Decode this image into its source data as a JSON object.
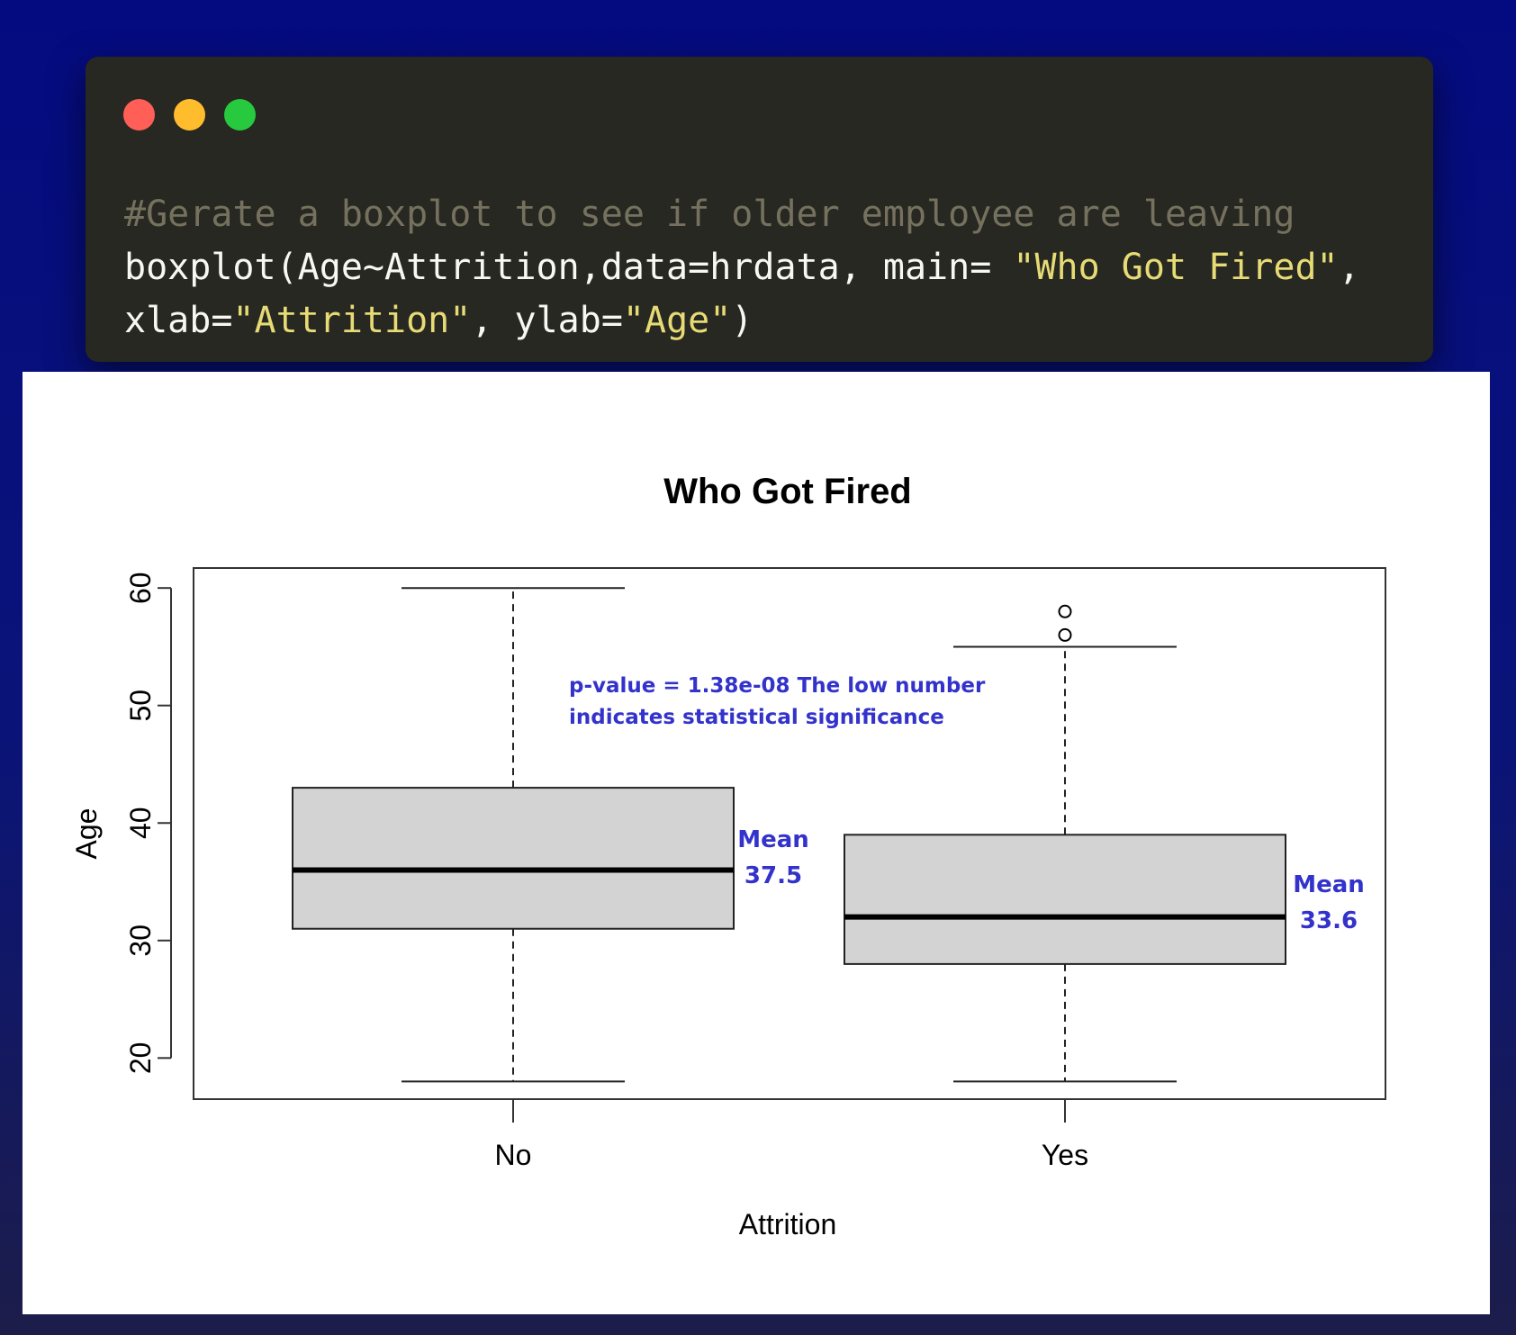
{
  "window": {
    "dots": [
      {
        "name": "close-dot",
        "color": "#ff5f56"
      },
      {
        "name": "minimize-dot",
        "color": "#ffbd2e"
      },
      {
        "name": "maximize-dot",
        "color": "#27c93f"
      }
    ]
  },
  "code": {
    "lines": [
      [
        {
          "t": "#Gerate a boxplot to see if older employee are leaving",
          "k": "comment"
        }
      ],
      [
        {
          "t": "boxplot(Age~Attrition,data=hrdata, main= ",
          "k": "plain"
        },
        {
          "t": "\"Who Got Fired\"",
          "k": "str"
        },
        {
          "t": ",",
          "k": "plain"
        }
      ],
      [
        {
          "t": "xlab=",
          "k": "plain"
        },
        {
          "t": "\"Attrition\"",
          "k": "str"
        },
        {
          "t": ", ylab=",
          "k": "plain"
        },
        {
          "t": "\"Age\"",
          "k": "str"
        },
        {
          "t": ")",
          "k": "plain"
        }
      ]
    ]
  },
  "chart_data": {
    "type": "boxplot",
    "title": "Who Got Fired",
    "xlabel": "Attrition",
    "ylabel": "Age",
    "ylim": [
      16.5,
      61.7
    ],
    "yticks": [
      20,
      30,
      40,
      50,
      60
    ],
    "grid": false,
    "box_color": "#d3d3d3",
    "categories": [
      "No",
      "Yes"
    ],
    "boxes": [
      {
        "category": "No",
        "whisker_low": 18,
        "q1": 31,
        "median": 36,
        "q3": 43,
        "whisker_high": 60,
        "outliers": []
      },
      {
        "category": "Yes",
        "whisker_low": 18,
        "q1": 28,
        "median": 32,
        "q3": 39,
        "whisker_high": 55,
        "outliers": [
          56,
          58
        ]
      }
    ],
    "annotations": {
      "color": "#3333cc",
      "pvalue_lines": [
        "p-value = 1.38e-08 The low number",
        "indicates statistical significance"
      ],
      "means": [
        {
          "category": "No",
          "lines": [
            "Mean",
            "37.5"
          ]
        },
        {
          "category": "Yes",
          "lines": [
            "Mean",
            "33.6"
          ]
        }
      ]
    }
  }
}
